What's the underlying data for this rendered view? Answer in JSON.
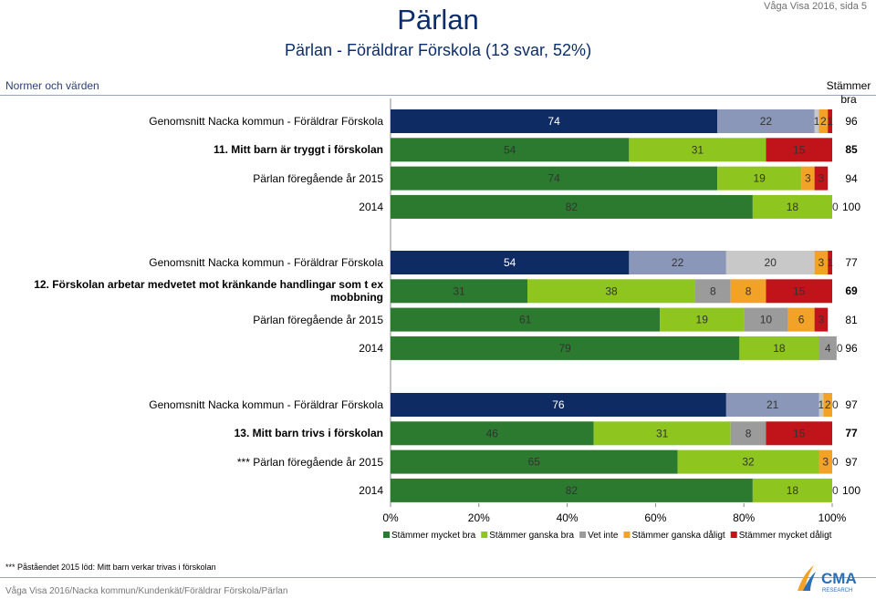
{
  "header": {
    "title": "Pärlan",
    "subtitle": "Pärlan - Föräldrar Förskola (13 svar, 52%)",
    "page_label": "Våga Visa 2016, sida 5"
  },
  "section_label": "Normer och värden",
  "total_header": "Stämmer bra",
  "footnote": "*** Påståendet 2015 löd: Mitt barn verkar trivas i förskolan",
  "footer": "Våga Visa 2016/Nacka kommun/Kundenkät/Föräldrar Förskola/Pärlan",
  "logo_text": "CMA RESEARCH",
  "colors": {
    "navy": "#0f2b64",
    "dark_green": "#2b7a2f",
    "light_green": "#8ec61f",
    "grey": "#9b9b9b",
    "orange": "#f2a227",
    "red": "#c0141a",
    "slate": "#8a97b8",
    "grid": "#c8c8c8"
  },
  "chart_data": {
    "type": "bar",
    "orientation": "horizontal",
    "stacked": true,
    "xlim": [
      0,
      100
    ],
    "x_ticks": [
      "0%",
      "20%",
      "40%",
      "60%",
      "80%",
      "100%"
    ],
    "legend_position": "bottom",
    "series": [
      {
        "name": "Stämmer mycket bra",
        "color": "#2b7a2f",
        "benchmark_color": "#0f2b64"
      },
      {
        "name": "Stämmer ganska bra",
        "color": "#8ec61f",
        "benchmark_color": "#8a97b8"
      },
      {
        "name": "Vet inte",
        "color": "#9b9b9b",
        "benchmark_color": "#c8c8c8"
      },
      {
        "name": "Stämmer ganska dåligt",
        "color": "#f2a227",
        "benchmark_color": "#f2a227"
      },
      {
        "name": "Stämmer mycket dåligt",
        "color": "#c0141a",
        "benchmark_color": "#c0141a"
      }
    ],
    "groups": [
      {
        "rows": [
          {
            "label": "Genomsnitt Nacka kommun - Föräldrar Förskola",
            "benchmark": true,
            "values": [
              74,
              22,
              1,
              2,
              1
            ],
            "value_labels": [
              "74",
              "22",
              "1",
              "2",
              "1"
            ],
            "total": "96",
            "bold": false
          },
          {
            "label": "11. Mitt barn är tryggt i förskolan",
            "benchmark": false,
            "values": [
              54,
              31,
              0,
              0,
              15
            ],
            "value_labels": [
              "54",
              "31",
              "0",
              "0",
              "15"
            ],
            "total": "85",
            "bold": true
          },
          {
            "label": "Pärlan föregående år 2015",
            "benchmark": false,
            "values": [
              74,
              19,
              0,
              3,
              3
            ],
            "value_labels": [
              "74",
              "19",
              "0",
              "3",
              "3"
            ],
            "total": "94",
            "bold": false
          },
          {
            "label": "2014",
            "benchmark": false,
            "values": [
              82,
              18,
              0,
              0,
              0
            ],
            "value_labels": [
              "82",
              "18",
              "0",
              "",
              ""
            ],
            "total": "100",
            "bold": false
          }
        ]
      },
      {
        "rows": [
          {
            "label": "Genomsnitt Nacka kommun - Föräldrar Förskola",
            "benchmark": true,
            "values": [
              54,
              22,
              20,
              3,
              1
            ],
            "value_labels": [
              "54",
              "22",
              "20",
              "3",
              "1"
            ],
            "total": "77",
            "bold": false
          },
          {
            "label": "12. Förskolan arbetar medvetet mot kränkande handlingar som t ex mobbning",
            "benchmark": false,
            "values": [
              31,
              38,
              8,
              8,
              15
            ],
            "value_labels": [
              "31",
              "38",
              "8",
              "8",
              "15"
            ],
            "total": "69",
            "bold": true
          },
          {
            "label": "Pärlan föregående år 2015",
            "benchmark": false,
            "values": [
              61,
              19,
              10,
              6,
              3
            ],
            "value_labels": [
              "61",
              "19",
              "10",
              "6",
              "3"
            ],
            "total": "81",
            "bold": false
          },
          {
            "label": "2014",
            "benchmark": false,
            "values": [
              79,
              18,
              4,
              0,
              0
            ],
            "value_labels": [
              "79",
              "18",
              "4",
              "0",
              ""
            ],
            "total": "96",
            "bold": false
          }
        ]
      },
      {
        "rows": [
          {
            "label": "Genomsnitt Nacka kommun - Föräldrar Förskola",
            "benchmark": true,
            "values": [
              76,
              21,
              1,
              2,
              0
            ],
            "value_labels": [
              "76",
              "21",
              "1",
              "2",
              "0"
            ],
            "total": "97",
            "bold": false
          },
          {
            "label": "13. Mitt barn trivs i förskolan",
            "benchmark": false,
            "values": [
              46,
              31,
              8,
              0,
              15
            ],
            "value_labels": [
              "46",
              "31",
              "8",
              "0",
              "15"
            ],
            "total": "77",
            "bold": true
          },
          {
            "label": "*** Pärlan föregående år 2015",
            "benchmark": false,
            "values": [
              65,
              32,
              0,
              3,
              0
            ],
            "value_labels": [
              "65",
              "32",
              "0",
              "3",
              "0"
            ],
            "total": "97",
            "bold": false
          },
          {
            "label": "2014",
            "benchmark": false,
            "values": [
              82,
              18,
              0,
              0,
              0
            ],
            "value_labels": [
              "82",
              "18",
              "0",
              "",
              ""
            ],
            "total": "100",
            "bold": false
          }
        ]
      }
    ]
  }
}
